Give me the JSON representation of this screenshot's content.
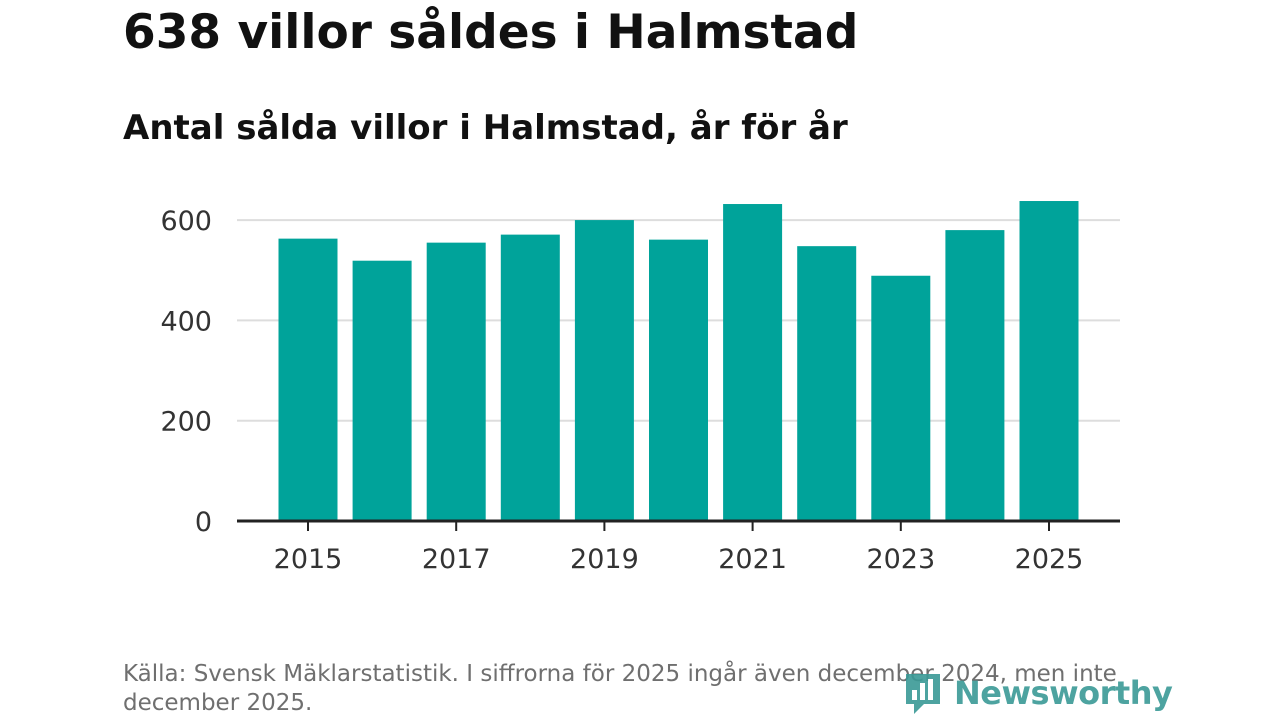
{
  "headline": "638 villor såldes i Halmstad",
  "subtitle": "Antal sålda villor i Halmstad, år för år",
  "source": "Källa: Svensk Mäklarstatistik. I siffrorna för 2025 ingår även december 2024, men inte december 2025.",
  "logo": {
    "text": "Newsworthy",
    "color": "#3a9a96"
  },
  "colors": {
    "bar": "#00a39a",
    "grid": "#dddddd",
    "axis": "#222222"
  },
  "chart_data": {
    "type": "bar",
    "title": "Antal sålda villor i Halmstad, år för år",
    "categories": [
      "2015",
      "2016",
      "2017",
      "2018",
      "2019",
      "2020",
      "2021",
      "2022",
      "2023",
      "2024",
      "2025"
    ],
    "values": [
      563,
      519,
      555,
      571,
      600,
      561,
      632,
      548,
      489,
      580,
      638
    ],
    "x_tick_labels": [
      "2015",
      "2017",
      "2019",
      "2021",
      "2023",
      "2025"
    ],
    "y_ticks": [
      0,
      200,
      400,
      600
    ],
    "y_tick_labels": [
      "0",
      "200",
      "400",
      "600"
    ],
    "ylim": [
      0,
      650
    ],
    "xlabel": "",
    "ylabel": "",
    "grid": true,
    "legend": "none"
  }
}
